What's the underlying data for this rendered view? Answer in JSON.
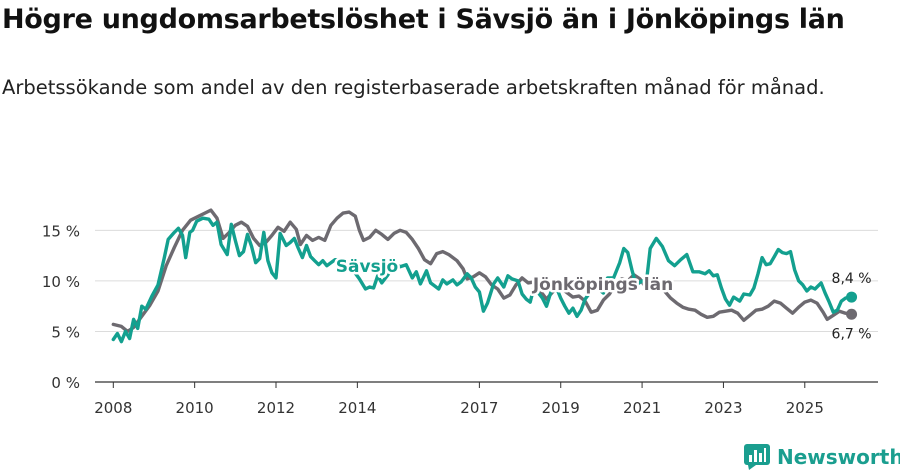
{
  "title": "Högre ungdomsarbetslöshet i Sävsjö än i Jönköpings län",
  "subtitle": "Arbetssökande som andel av den registerbaserade arbetskraften månad för månad.",
  "brand": {
    "name": "Newsworthy"
  },
  "colors": {
    "savsjo": "#13a08f",
    "lan": "#6d6a70",
    "grid": "#dcdcdc",
    "axis": "#333333"
  },
  "chart_data": {
    "type": "line",
    "title": "Högre ungdomsarbetslöshet i Sävsjö än i Jönköpings län",
    "ylabel": "",
    "xlabel": "",
    "ylim": [
      0,
      18
    ],
    "yticks": [
      0,
      5,
      10,
      15
    ],
    "ytick_labels": [
      "0 %",
      "5 %",
      "10 %",
      "15 %"
    ],
    "xticks": [
      2008,
      2010,
      2012,
      2014,
      2017,
      2019,
      2021,
      2023,
      2025
    ],
    "xtick_labels": [
      "2008",
      "2010",
      "2012",
      "2014",
      "2017",
      "2019",
      "2021",
      "2023",
      "2025"
    ],
    "xlim": [
      2007.55,
      2026.8
    ],
    "series": [
      {
        "name": "Jönköpings län",
        "label": "Jönköpings län",
        "end_label": "6,7 %",
        "points": [
          [
            2008.0,
            5.7
          ],
          [
            2008.2,
            5.5
          ],
          [
            2008.35,
            5.0
          ],
          [
            2008.5,
            5.4
          ],
          [
            2008.7,
            6.5
          ],
          [
            2008.9,
            7.6
          ],
          [
            2009.1,
            9.0
          ],
          [
            2009.3,
            11.5
          ],
          [
            2009.5,
            13.3
          ],
          [
            2009.7,
            15.0
          ],
          [
            2009.9,
            16.0
          ],
          [
            2010.1,
            16.4
          ],
          [
            2010.3,
            16.8
          ],
          [
            2010.4,
            17.0
          ],
          [
            2010.55,
            16.2
          ],
          [
            2010.7,
            14.2
          ],
          [
            2010.85,
            14.8
          ],
          [
            2011.0,
            15.5
          ],
          [
            2011.15,
            15.8
          ],
          [
            2011.3,
            15.4
          ],
          [
            2011.45,
            14.2
          ],
          [
            2011.6,
            13.5
          ],
          [
            2011.75,
            13.8
          ],
          [
            2011.9,
            14.5
          ],
          [
            2012.05,
            15.3
          ],
          [
            2012.2,
            14.9
          ],
          [
            2012.35,
            15.8
          ],
          [
            2012.5,
            15.1
          ],
          [
            2012.6,
            13.6
          ],
          [
            2012.75,
            14.5
          ],
          [
            2012.9,
            14.0
          ],
          [
            2013.05,
            14.3
          ],
          [
            2013.2,
            14.0
          ],
          [
            2013.35,
            15.5
          ],
          [
            2013.5,
            16.2
          ],
          [
            2013.65,
            16.7
          ],
          [
            2013.8,
            16.8
          ],
          [
            2013.95,
            16.4
          ],
          [
            2014.05,
            15.0
          ],
          [
            2014.15,
            14.0
          ],
          [
            2014.3,
            14.3
          ],
          [
            2014.45,
            15.0
          ],
          [
            2014.6,
            14.6
          ],
          [
            2014.75,
            14.1
          ],
          [
            2014.9,
            14.7
          ],
          [
            2015.05,
            15.0
          ],
          [
            2015.2,
            14.8
          ],
          [
            2015.35,
            14.1
          ],
          [
            2015.5,
            13.2
          ],
          [
            2015.65,
            12.1
          ],
          [
            2015.8,
            11.7
          ],
          [
            2015.95,
            12.7
          ],
          [
            2016.1,
            12.9
          ],
          [
            2016.25,
            12.6
          ],
          [
            2016.45,
            12.0
          ],
          [
            2016.6,
            11.2
          ],
          [
            2016.7,
            10.2
          ],
          [
            2016.85,
            10.4
          ],
          [
            2017.0,
            10.8
          ],
          [
            2017.15,
            10.4
          ],
          [
            2017.3,
            9.6
          ],
          [
            2017.45,
            9.2
          ],
          [
            2017.6,
            8.3
          ],
          [
            2017.75,
            8.6
          ],
          [
            2017.9,
            9.6
          ],
          [
            2018.05,
            10.3
          ],
          [
            2018.2,
            9.8
          ],
          [
            2018.35,
            9.9
          ],
          [
            2018.5,
            9.0
          ],
          [
            2018.65,
            8.2
          ],
          [
            2018.8,
            8.9
          ],
          [
            2018.95,
            9.4
          ],
          [
            2019.1,
            9.0
          ],
          [
            2019.3,
            8.4
          ],
          [
            2019.45,
            8.5
          ],
          [
            2019.6,
            8.0
          ],
          [
            2019.75,
            6.9
          ],
          [
            2019.9,
            7.1
          ],
          [
            2020.05,
            8.1
          ],
          [
            2020.2,
            8.7
          ],
          [
            2020.35,
            9.7
          ],
          [
            2020.5,
            10.2
          ],
          [
            2020.65,
            10.0
          ],
          [
            2020.8,
            10.6
          ],
          [
            2020.95,
            10.2
          ],
          [
            2021.1,
            9.3
          ],
          [
            2021.25,
            9.4
          ],
          [
            2021.4,
            9.8
          ],
          [
            2021.55,
            9.0
          ],
          [
            2021.7,
            8.3
          ],
          [
            2021.85,
            7.8
          ],
          [
            2022.0,
            7.4
          ],
          [
            2022.15,
            7.2
          ],
          [
            2022.3,
            7.1
          ],
          [
            2022.45,
            6.7
          ],
          [
            2022.6,
            6.4
          ],
          [
            2022.75,
            6.5
          ],
          [
            2022.9,
            6.9
          ],
          [
            2023.05,
            7.0
          ],
          [
            2023.2,
            7.1
          ],
          [
            2023.35,
            6.8
          ],
          [
            2023.5,
            6.1
          ],
          [
            2023.65,
            6.6
          ],
          [
            2023.8,
            7.1
          ],
          [
            2023.95,
            7.2
          ],
          [
            2024.1,
            7.5
          ],
          [
            2024.25,
            8.0
          ],
          [
            2024.4,
            7.8
          ],
          [
            2024.55,
            7.3
          ],
          [
            2024.7,
            6.8
          ],
          [
            2024.85,
            7.4
          ],
          [
            2025.0,
            7.9
          ],
          [
            2025.15,
            8.1
          ],
          [
            2025.3,
            7.8
          ],
          [
            2025.45,
            6.9
          ],
          [
            2025.55,
            6.2
          ],
          [
            2025.7,
            6.6
          ],
          [
            2025.85,
            7.0
          ],
          [
            2026.0,
            6.8
          ],
          [
            2026.15,
            6.7
          ]
        ]
      },
      {
        "name": "Sävsjö",
        "label": "Sävsjö",
        "end_label": "8,4 %",
        "points": [
          [
            2008.0,
            4.2
          ],
          [
            2008.1,
            4.8
          ],
          [
            2008.2,
            4.0
          ],
          [
            2008.3,
            5.0
          ],
          [
            2008.4,
            4.3
          ],
          [
            2008.5,
            6.2
          ],
          [
            2008.6,
            5.3
          ],
          [
            2008.7,
            7.5
          ],
          [
            2008.8,
            7.2
          ],
          [
            2008.95,
            8.5
          ],
          [
            2009.1,
            9.6
          ],
          [
            2009.25,
            12.2
          ],
          [
            2009.35,
            14.1
          ],
          [
            2009.5,
            14.8
          ],
          [
            2009.6,
            15.2
          ],
          [
            2009.7,
            14.5
          ],
          [
            2009.78,
            12.3
          ],
          [
            2009.88,
            14.8
          ],
          [
            2009.95,
            15.0
          ],
          [
            2010.05,
            15.9
          ],
          [
            2010.2,
            16.2
          ],
          [
            2010.35,
            16.1
          ],
          [
            2010.45,
            15.5
          ],
          [
            2010.55,
            15.8
          ],
          [
            2010.65,
            13.6
          ],
          [
            2010.8,
            12.6
          ],
          [
            2010.9,
            15.6
          ],
          [
            2011.0,
            14.0
          ],
          [
            2011.1,
            12.5
          ],
          [
            2011.2,
            12.9
          ],
          [
            2011.3,
            14.6
          ],
          [
            2011.4,
            13.4
          ],
          [
            2011.5,
            11.8
          ],
          [
            2011.6,
            12.2
          ],
          [
            2011.7,
            14.8
          ],
          [
            2011.8,
            12.0
          ],
          [
            2011.9,
            10.8
          ],
          [
            2012.0,
            10.3
          ],
          [
            2012.1,
            14.7
          ],
          [
            2012.25,
            13.5
          ],
          [
            2012.35,
            13.8
          ],
          [
            2012.45,
            14.2
          ],
          [
            2012.55,
            13.2
          ],
          [
            2012.65,
            12.3
          ],
          [
            2012.75,
            13.5
          ],
          [
            2012.85,
            12.4
          ],
          [
            2012.95,
            12.0
          ],
          [
            2013.05,
            11.6
          ],
          [
            2013.15,
            12.0
          ],
          [
            2013.25,
            11.5
          ],
          [
            2013.35,
            11.8
          ],
          [
            2013.45,
            12.1
          ],
          [
            2013.6,
            12.1
          ],
          [
            2013.75,
            11.4
          ],
          [
            2013.85,
            11.3
          ],
          [
            2014.05,
            10.2
          ],
          [
            2014.2,
            9.2
          ],
          [
            2014.3,
            9.4
          ],
          [
            2014.4,
            9.3
          ],
          [
            2014.5,
            10.5
          ],
          [
            2014.6,
            9.8
          ],
          [
            2014.75,
            10.6
          ],
          [
            2014.9,
            11.8
          ],
          [
            2015.05,
            11.4
          ],
          [
            2015.2,
            11.6
          ],
          [
            2015.35,
            10.3
          ],
          [
            2015.45,
            10.9
          ],
          [
            2015.55,
            9.7
          ],
          [
            2015.7,
            11.0
          ],
          [
            2015.8,
            9.8
          ],
          [
            2015.9,
            9.5
          ],
          [
            2016.0,
            9.2
          ],
          [
            2016.1,
            10.1
          ],
          [
            2016.2,
            9.7
          ],
          [
            2016.35,
            10.1
          ],
          [
            2016.45,
            9.6
          ],
          [
            2016.55,
            9.9
          ],
          [
            2016.7,
            10.7
          ],
          [
            2016.8,
            10.3
          ],
          [
            2016.9,
            9.4
          ],
          [
            2017.0,
            8.9
          ],
          [
            2017.1,
            7.0
          ],
          [
            2017.2,
            7.8
          ],
          [
            2017.35,
            9.7
          ],
          [
            2017.45,
            10.3
          ],
          [
            2017.6,
            9.4
          ],
          [
            2017.7,
            10.5
          ],
          [
            2017.8,
            10.2
          ],
          [
            2017.95,
            10.0
          ],
          [
            2018.05,
            8.7
          ],
          [
            2018.15,
            8.2
          ],
          [
            2018.25,
            7.9
          ],
          [
            2018.35,
            9.5
          ],
          [
            2018.45,
            8.8
          ],
          [
            2018.55,
            8.3
          ],
          [
            2018.65,
            7.5
          ],
          [
            2018.75,
            8.8
          ],
          [
            2018.85,
            9.8
          ],
          [
            2019.0,
            8.3
          ],
          [
            2019.1,
            7.5
          ],
          [
            2019.2,
            6.8
          ],
          [
            2019.3,
            7.3
          ],
          [
            2019.4,
            6.5
          ],
          [
            2019.5,
            7.1
          ],
          [
            2019.6,
            8.2
          ],
          [
            2019.75,
            9.0
          ],
          [
            2019.9,
            9.3
          ],
          [
            2020.05,
            8.8
          ],
          [
            2020.15,
            10.3
          ],
          [
            2020.3,
            10.3
          ],
          [
            2020.45,
            11.8
          ],
          [
            2020.55,
            13.2
          ],
          [
            2020.65,
            12.8
          ],
          [
            2020.75,
            11.1
          ],
          [
            2020.85,
            9.6
          ],
          [
            2021.0,
            10.0
          ],
          [
            2021.1,
            9.7
          ],
          [
            2021.2,
            13.2
          ],
          [
            2021.35,
            14.2
          ],
          [
            2021.5,
            13.4
          ],
          [
            2021.65,
            12.0
          ],
          [
            2021.8,
            11.5
          ],
          [
            2021.95,
            12.1
          ],
          [
            2022.1,
            12.6
          ],
          [
            2022.25,
            10.9
          ],
          [
            2022.4,
            10.9
          ],
          [
            2022.55,
            10.7
          ],
          [
            2022.65,
            11.0
          ],
          [
            2022.75,
            10.5
          ],
          [
            2022.85,
            10.6
          ],
          [
            2022.95,
            9.3
          ],
          [
            2023.05,
            8.2
          ],
          [
            2023.15,
            7.6
          ],
          [
            2023.25,
            8.4
          ],
          [
            2023.4,
            8.0
          ],
          [
            2023.5,
            8.7
          ],
          [
            2023.65,
            8.6
          ],
          [
            2023.75,
            9.3
          ],
          [
            2023.85,
            10.7
          ],
          [
            2023.95,
            12.3
          ],
          [
            2024.05,
            11.6
          ],
          [
            2024.15,
            11.7
          ],
          [
            2024.25,
            12.4
          ],
          [
            2024.35,
            13.1
          ],
          [
            2024.45,
            12.8
          ],
          [
            2024.55,
            12.7
          ],
          [
            2024.65,
            12.9
          ],
          [
            2024.75,
            11.1
          ],
          [
            2024.85,
            10.0
          ],
          [
            2024.95,
            9.6
          ],
          [
            2025.05,
            9.0
          ],
          [
            2025.15,
            9.4
          ],
          [
            2025.25,
            9.2
          ],
          [
            2025.4,
            9.8
          ],
          [
            2025.5,
            8.8
          ],
          [
            2025.6,
            7.9
          ],
          [
            2025.7,
            6.9
          ],
          [
            2025.8,
            7.1
          ],
          [
            2025.9,
            8.0
          ],
          [
            2026.0,
            8.3
          ],
          [
            2026.15,
            8.4
          ]
        ]
      }
    ]
  }
}
